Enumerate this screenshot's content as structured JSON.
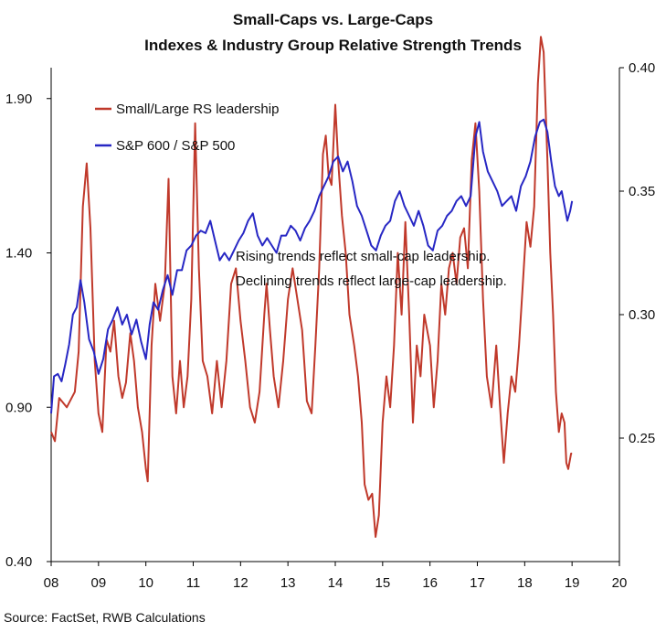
{
  "chart_data": {
    "type": "line",
    "title": "Small-Caps vs. Large-Caps",
    "subtitle": "Indexes & Industry Group Relative Strength Trends",
    "x_ticks": [
      "08",
      "09",
      "10",
      "11",
      "12",
      "13",
      "14",
      "15",
      "16",
      "17",
      "18",
      "19",
      "20"
    ],
    "xlim": [
      2008,
      2020
    ],
    "left_axis": {
      "ticks": [
        "0.40",
        "0.90",
        "1.40",
        "1.90"
      ],
      "ylim": [
        0.4,
        2.0
      ]
    },
    "right_axis": {
      "ticks": [
        "0.25",
        "0.30",
        "0.35",
        "0.40"
      ],
      "ylim": [
        0.2,
        0.4
      ]
    },
    "legend_placement": "top-left",
    "grid": false,
    "series": [
      {
        "name": "Small/Large RS leadership",
        "axis": "left",
        "color": "#c0392b",
        "points": [
          [
            2008.0,
            0.82
          ],
          [
            2008.08,
            0.79
          ],
          [
            2008.17,
            0.93
          ],
          [
            2008.33,
            0.9
          ],
          [
            2008.5,
            0.95
          ],
          [
            2008.58,
            1.08
          ],
          [
            2008.67,
            1.55
          ],
          [
            2008.75,
            1.69
          ],
          [
            2008.83,
            1.48
          ],
          [
            2008.92,
            1.05
          ],
          [
            2009.0,
            0.88
          ],
          [
            2009.08,
            0.82
          ],
          [
            2009.17,
            1.12
          ],
          [
            2009.25,
            1.08
          ],
          [
            2009.33,
            1.18
          ],
          [
            2009.42,
            1.0
          ],
          [
            2009.5,
            0.93
          ],
          [
            2009.58,
            0.98
          ],
          [
            2009.67,
            1.14
          ],
          [
            2009.75,
            1.05
          ],
          [
            2009.83,
            0.9
          ],
          [
            2009.92,
            0.82
          ],
          [
            2010.0,
            0.7
          ],
          [
            2010.04,
            0.66
          ],
          [
            2010.12,
            1.1
          ],
          [
            2010.2,
            1.3
          ],
          [
            2010.3,
            1.18
          ],
          [
            2010.4,
            1.3
          ],
          [
            2010.48,
            1.64
          ],
          [
            2010.56,
            1.0
          ],
          [
            2010.64,
            0.88
          ],
          [
            2010.72,
            1.05
          ],
          [
            2010.8,
            0.9
          ],
          [
            2010.88,
            1.0
          ],
          [
            2010.96,
            1.25
          ],
          [
            2011.04,
            1.82
          ],
          [
            2011.12,
            1.35
          ],
          [
            2011.2,
            1.05
          ],
          [
            2011.3,
            1.0
          ],
          [
            2011.4,
            0.88
          ],
          [
            2011.5,
            1.05
          ],
          [
            2011.6,
            0.9
          ],
          [
            2011.7,
            1.05
          ],
          [
            2011.8,
            1.3
          ],
          [
            2011.9,
            1.35
          ],
          [
            2012.0,
            1.18
          ],
          [
            2012.1,
            1.05
          ],
          [
            2012.2,
            0.9
          ],
          [
            2012.3,
            0.85
          ],
          [
            2012.4,
            0.95
          ],
          [
            2012.5,
            1.2
          ],
          [
            2012.55,
            1.3
          ],
          [
            2012.62,
            1.15
          ],
          [
            2012.7,
            1.0
          ],
          [
            2012.8,
            0.9
          ],
          [
            2012.9,
            1.05
          ],
          [
            2013.0,
            1.25
          ],
          [
            2013.1,
            1.35
          ],
          [
            2013.2,
            1.25
          ],
          [
            2013.3,
            1.15
          ],
          [
            2013.4,
            0.92
          ],
          [
            2013.5,
            0.88
          ],
          [
            2013.58,
            1.1
          ],
          [
            2013.66,
            1.35
          ],
          [
            2013.74,
            1.72
          ],
          [
            2013.8,
            1.78
          ],
          [
            2013.86,
            1.65
          ],
          [
            2013.92,
            1.62
          ],
          [
            2014.0,
            1.88
          ],
          [
            2014.06,
            1.7
          ],
          [
            2014.14,
            1.52
          ],
          [
            2014.22,
            1.4
          ],
          [
            2014.3,
            1.2
          ],
          [
            2014.4,
            1.1
          ],
          [
            2014.48,
            1.0
          ],
          [
            2014.56,
            0.85
          ],
          [
            2014.62,
            0.65
          ],
          [
            2014.7,
            0.6
          ],
          [
            2014.78,
            0.62
          ],
          [
            2014.85,
            0.48
          ],
          [
            2014.92,
            0.55
          ],
          [
            2015.0,
            0.85
          ],
          [
            2015.08,
            1.0
          ],
          [
            2015.16,
            0.9
          ],
          [
            2015.24,
            1.1
          ],
          [
            2015.32,
            1.4
          ],
          [
            2015.4,
            1.2
          ],
          [
            2015.48,
            1.5
          ],
          [
            2015.56,
            1.2
          ],
          [
            2015.64,
            0.85
          ],
          [
            2015.72,
            1.1
          ],
          [
            2015.8,
            1.0
          ],
          [
            2015.88,
            1.2
          ],
          [
            2016.0,
            1.1
          ],
          [
            2016.08,
            0.9
          ],
          [
            2016.16,
            1.05
          ],
          [
            2016.24,
            1.3
          ],
          [
            2016.32,
            1.2
          ],
          [
            2016.4,
            1.35
          ],
          [
            2016.48,
            1.4
          ],
          [
            2016.56,
            1.3
          ],
          [
            2016.64,
            1.45
          ],
          [
            2016.72,
            1.48
          ],
          [
            2016.8,
            1.35
          ],
          [
            2016.88,
            1.7
          ],
          [
            2016.96,
            1.82
          ],
          [
            2017.04,
            1.6
          ],
          [
            2017.12,
            1.25
          ],
          [
            2017.2,
            1.0
          ],
          [
            2017.3,
            0.9
          ],
          [
            2017.4,
            1.1
          ],
          [
            2017.48,
            0.9
          ],
          [
            2017.56,
            0.72
          ],
          [
            2017.64,
            0.88
          ],
          [
            2017.72,
            1.0
          ],
          [
            2017.8,
            0.95
          ],
          [
            2017.88,
            1.1
          ],
          [
            2017.96,
            1.3
          ],
          [
            2018.04,
            1.5
          ],
          [
            2018.12,
            1.42
          ],
          [
            2018.2,
            1.55
          ],
          [
            2018.28,
            1.95
          ],
          [
            2018.34,
            2.1
          ],
          [
            2018.4,
            2.05
          ],
          [
            2018.48,
            1.7
          ],
          [
            2018.54,
            1.4
          ],
          [
            2018.6,
            1.2
          ],
          [
            2018.66,
            0.95
          ],
          [
            2018.72,
            0.82
          ],
          [
            2018.78,
            0.88
          ],
          [
            2018.84,
            0.85
          ],
          [
            2018.88,
            0.72
          ],
          [
            2018.92,
            0.7
          ],
          [
            2018.98,
            0.75
          ],
          [
            2019.0,
            0.75
          ]
        ]
      },
      {
        "name": "S&P 600 / S&P 500",
        "axis": "right",
        "color": "#2727c4",
        "points": [
          [
            2008.0,
            0.26
          ],
          [
            2008.06,
            0.275
          ],
          [
            2008.14,
            0.276
          ],
          [
            2008.22,
            0.273
          ],
          [
            2008.3,
            0.28
          ],
          [
            2008.38,
            0.288
          ],
          [
            2008.46,
            0.3
          ],
          [
            2008.54,
            0.303
          ],
          [
            2008.62,
            0.314
          ],
          [
            2008.7,
            0.305
          ],
          [
            2008.8,
            0.29
          ],
          [
            2008.9,
            0.285
          ],
          [
            2009.0,
            0.276
          ],
          [
            2009.1,
            0.282
          ],
          [
            2009.2,
            0.294
          ],
          [
            2009.3,
            0.298
          ],
          [
            2009.4,
            0.303
          ],
          [
            2009.5,
            0.296
          ],
          [
            2009.6,
            0.3
          ],
          [
            2009.7,
            0.292
          ],
          [
            2009.8,
            0.298
          ],
          [
            2009.9,
            0.289
          ],
          [
            2010.0,
            0.282
          ],
          [
            2010.08,
            0.296
          ],
          [
            2010.16,
            0.305
          ],
          [
            2010.26,
            0.302
          ],
          [
            2010.36,
            0.31
          ],
          [
            2010.46,
            0.316
          ],
          [
            2010.56,
            0.308
          ],
          [
            2010.66,
            0.318
          ],
          [
            2010.76,
            0.318
          ],
          [
            2010.86,
            0.326
          ],
          [
            2010.96,
            0.328
          ],
          [
            2011.06,
            0.332
          ],
          [
            2011.16,
            0.334
          ],
          [
            2011.26,
            0.333
          ],
          [
            2011.36,
            0.338
          ],
          [
            2011.46,
            0.33
          ],
          [
            2011.56,
            0.322
          ],
          [
            2011.66,
            0.325
          ],
          [
            2011.76,
            0.322
          ],
          [
            2011.86,
            0.326
          ],
          [
            2011.96,
            0.33
          ],
          [
            2012.06,
            0.333
          ],
          [
            2012.16,
            0.338
          ],
          [
            2012.26,
            0.341
          ],
          [
            2012.36,
            0.332
          ],
          [
            2012.46,
            0.328
          ],
          [
            2012.56,
            0.331
          ],
          [
            2012.66,
            0.328
          ],
          [
            2012.76,
            0.325
          ],
          [
            2012.86,
            0.332
          ],
          [
            2012.96,
            0.332
          ],
          [
            2013.06,
            0.336
          ],
          [
            2013.16,
            0.334
          ],
          [
            2013.26,
            0.33
          ],
          [
            2013.36,
            0.335
          ],
          [
            2013.46,
            0.338
          ],
          [
            2013.56,
            0.342
          ],
          [
            2013.66,
            0.348
          ],
          [
            2013.76,
            0.352
          ],
          [
            2013.86,
            0.356
          ],
          [
            2013.96,
            0.362
          ],
          [
            2014.06,
            0.364
          ],
          [
            2014.16,
            0.358
          ],
          [
            2014.26,
            0.362
          ],
          [
            2014.36,
            0.354
          ],
          [
            2014.46,
            0.344
          ],
          [
            2014.56,
            0.34
          ],
          [
            2014.66,
            0.334
          ],
          [
            2014.76,
            0.328
          ],
          [
            2014.86,
            0.326
          ],
          [
            2014.96,
            0.332
          ],
          [
            2015.06,
            0.336
          ],
          [
            2015.16,
            0.338
          ],
          [
            2015.26,
            0.346
          ],
          [
            2015.36,
            0.35
          ],
          [
            2015.46,
            0.344
          ],
          [
            2015.56,
            0.34
          ],
          [
            2015.66,
            0.336
          ],
          [
            2015.76,
            0.342
          ],
          [
            2015.86,
            0.336
          ],
          [
            2015.96,
            0.328
          ],
          [
            2016.06,
            0.326
          ],
          [
            2016.16,
            0.334
          ],
          [
            2016.26,
            0.336
          ],
          [
            2016.36,
            0.34
          ],
          [
            2016.46,
            0.342
          ],
          [
            2016.56,
            0.346
          ],
          [
            2016.66,
            0.348
          ],
          [
            2016.76,
            0.344
          ],
          [
            2016.86,
            0.348
          ],
          [
            2016.96,
            0.372
          ],
          [
            2017.04,
            0.378
          ],
          [
            2017.12,
            0.366
          ],
          [
            2017.22,
            0.358
          ],
          [
            2017.32,
            0.354
          ],
          [
            2017.42,
            0.35
          ],
          [
            2017.52,
            0.344
          ],
          [
            2017.62,
            0.346
          ],
          [
            2017.72,
            0.348
          ],
          [
            2017.82,
            0.342
          ],
          [
            2017.92,
            0.352
          ],
          [
            2018.02,
            0.356
          ],
          [
            2018.12,
            0.362
          ],
          [
            2018.22,
            0.372
          ],
          [
            2018.32,
            0.378
          ],
          [
            2018.4,
            0.379
          ],
          [
            2018.48,
            0.374
          ],
          [
            2018.56,
            0.362
          ],
          [
            2018.64,
            0.352
          ],
          [
            2018.72,
            0.348
          ],
          [
            2018.78,
            0.35
          ],
          [
            2018.84,
            0.344
          ],
          [
            2018.9,
            0.338
          ],
          [
            2018.96,
            0.342
          ],
          [
            2019.0,
            0.346
          ]
        ]
      }
    ]
  },
  "annotation": {
    "line1": "Rising trends reflect small-cap leadership.",
    "line2": "Declining trends reflect large-cap leadership."
  },
  "source": "Source: FactSet, RWB Calculations"
}
